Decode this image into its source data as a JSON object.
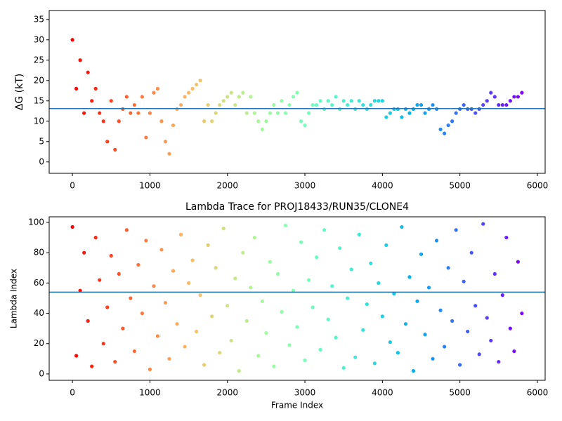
{
  "chart_data": [
    {
      "type": "scatter",
      "ylabel": "ΔG (kT)",
      "colormap": "rainbow",
      "hline": 13.1,
      "hline_color": "#1f77b4",
      "xlim": [
        -300,
        6100
      ],
      "ylim": [
        -2.8,
        37.2
      ],
      "xticks": [
        0,
        1000,
        2000,
        3000,
        4000,
        5000,
        6000
      ],
      "yticks": [
        0,
        5,
        10,
        15,
        20,
        25,
        30,
        35
      ],
      "x": [
        0,
        50,
        100,
        150,
        200,
        250,
        300,
        350,
        400,
        450,
        500,
        550,
        600,
        650,
        700,
        750,
        800,
        850,
        900,
        950,
        1000,
        1050,
        1100,
        1150,
        1200,
        1250,
        1300,
        1350,
        1400,
        1450,
        1500,
        1550,
        1600,
        1650,
        1700,
        1750,
        1800,
        1850,
        1900,
        1950,
        2000,
        2050,
        2100,
        2150,
        2200,
        2250,
        2300,
        2350,
        2400,
        2450,
        2500,
        2550,
        2600,
        2650,
        2700,
        2750,
        2800,
        2850,
        2900,
        2950,
        3000,
        3050,
        3100,
        3150,
        3200,
        3250,
        3300,
        3350,
        3400,
        3450,
        3500,
        3550,
        3600,
        3650,
        3700,
        3750,
        3800,
        3850,
        3900,
        3950,
        4000,
        4050,
        4100,
        4150,
        4200,
        4250,
        4300,
        4350,
        4400,
        4450,
        4500,
        4550,
        4600,
        4650,
        4700,
        4750,
        4800,
        4850,
        4900,
        4950,
        5000,
        5050,
        5100,
        5150,
        5200,
        5250,
        5300,
        5350,
        5400,
        5450,
        5500,
        5550,
        5600,
        5650,
        5700,
        5750,
        5800
      ],
      "values": [
        30,
        18,
        25,
        12,
        22,
        15,
        18,
        12,
        10,
        5,
        15,
        3,
        10,
        13,
        16,
        12,
        14,
        12,
        16,
        6,
        12,
        17,
        18,
        10,
        5,
        2,
        9,
        13,
        14,
        16,
        17,
        18,
        19,
        20,
        10,
        14,
        10,
        12,
        14,
        15,
        16,
        17,
        14,
        16,
        17,
        12,
        16,
        12,
        10,
        8,
        10,
        12,
        14,
        12,
        15,
        12,
        14,
        16,
        17,
        10,
        9,
        12,
        14,
        14,
        15,
        13,
        15,
        14,
        16,
        13,
        15,
        14,
        15,
        13,
        15,
        14,
        13,
        14,
        15,
        15,
        15,
        11,
        12,
        13,
        13,
        11,
        13,
        12,
        13,
        14,
        14,
        12,
        13,
        14,
        13,
        8,
        7,
        9,
        10,
        12,
        13,
        14,
        13,
        13,
        12,
        13,
        14,
        15,
        17,
        16,
        14,
        14,
        14,
        15,
        16,
        16,
        17
      ]
    },
    {
      "type": "scatter",
      "title": "Lambda Trace for PROJ18433/RUN35/CLONE4",
      "xlabel": "Frame Index",
      "ylabel": "Lambda Index",
      "colormap": "rainbow",
      "hline": 54,
      "hline_color": "#1f77b4",
      "xlim": [
        -300,
        6100
      ],
      "ylim": [
        -4.2,
        103.7
      ],
      "xticks": [
        0,
        1000,
        2000,
        3000,
        4000,
        5000,
        6000
      ],
      "yticks": [
        0,
        20,
        40,
        60,
        80,
        100
      ],
      "x": [
        0,
        50,
        100,
        150,
        200,
        250,
        300,
        350,
        400,
        450,
        500,
        550,
        600,
        650,
        700,
        750,
        800,
        850,
        900,
        950,
        1000,
        1050,
        1100,
        1150,
        1200,
        1250,
        1300,
        1350,
        1400,
        1450,
        1500,
        1550,
        1600,
        1650,
        1700,
        1750,
        1800,
        1850,
        1900,
        1950,
        2000,
        2050,
        2100,
        2150,
        2200,
        2250,
        2300,
        2350,
        2400,
        2450,
        2500,
        2550,
        2600,
        2650,
        2700,
        2750,
        2800,
        2850,
        2900,
        2950,
        3000,
        3050,
        3100,
        3150,
        3200,
        3250,
        3300,
        3350,
        3400,
        3450,
        3500,
        3550,
        3600,
        3650,
        3700,
        3750,
        3800,
        3850,
        3900,
        3950,
        4000,
        4050,
        4100,
        4150,
        4200,
        4250,
        4300,
        4350,
        4400,
        4450,
        4500,
        4550,
        4600,
        4650,
        4700,
        4750,
        4800,
        4850,
        4900,
        4950,
        5000,
        5050,
        5100,
        5150,
        5200,
        5250,
        5300,
        5350,
        5400,
        5450,
        5500,
        5550,
        5600,
        5650,
        5700,
        5750,
        5800
      ],
      "values": [
        97,
        12,
        55,
        80,
        35,
        5,
        90,
        62,
        20,
        44,
        78,
        8,
        66,
        30,
        95,
        50,
        15,
        72,
        40,
        88,
        3,
        58,
        25,
        82,
        47,
        10,
        68,
        33,
        92,
        18,
        60,
        75,
        28,
        52,
        6,
        85,
        38,
        70,
        14,
        96,
        45,
        22,
        63,
        2,
        80,
        35,
        57,
        90,
        12,
        48,
        27,
        74,
        5,
        66,
        41,
        98,
        19,
        55,
        31,
        87,
        9,
        62,
        44,
        77,
        16,
        95,
        36,
        58,
        24,
        83,
        4,
        50,
        69,
        11,
        92,
        29,
        46,
        73,
        7,
        60,
        38,
        85,
        21,
        53,
        14,
        97,
        33,
        64,
        2,
        48,
        79,
        26,
        57,
        10,
        88,
        42,
        18,
        70,
        35,
        95,
        6,
        61,
        28,
        80,
        45,
        13,
        99,
        37,
        22,
        66,
        8,
        52,
        90,
        30,
        15,
        74,
        40
      ]
    }
  ]
}
